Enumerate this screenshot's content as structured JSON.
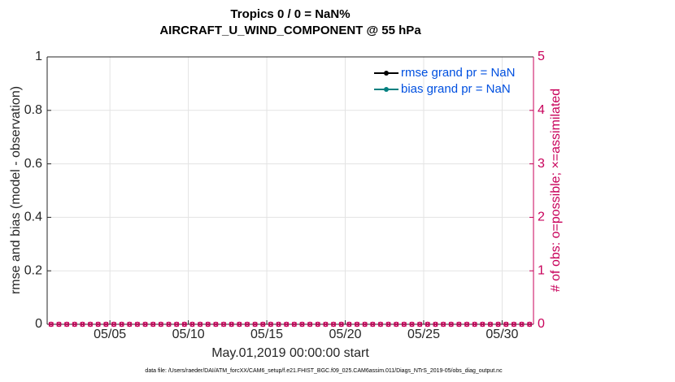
{
  "chart_data": {
    "type": "line",
    "title": "Tropics 0 / 0 = NaN%",
    "subtitle": "AIRCRAFT_U_WIND_COMPONENT @ 55 hPa",
    "ylabel": "rmse and bias (model - observation)",
    "y2label": "# of obs: o=possible; ×=assimilated",
    "xlabel": "May.01,2019 00:00:00 start",
    "footnote": "data file: /Users/raeder/DAI/ATM_forcXX/CAM6_setup/f.e21.FHIST_BGC.f09_025.CAM6assim.011/Diags_NTrS_2019-05/obs_diag_output.nc",
    "xlim": [
      1,
      32
    ],
    "xticks": [
      {
        "value": 5,
        "label": "05/05"
      },
      {
        "value": 10,
        "label": "05/10"
      },
      {
        "value": 15,
        "label": "05/15"
      },
      {
        "value": 20,
        "label": "05/20"
      },
      {
        "value": 25,
        "label": "05/25"
      },
      {
        "value": 30,
        "label": "05/30"
      }
    ],
    "ylim": [
      0,
      1
    ],
    "yticks": [
      0,
      0.2,
      0.4,
      0.6,
      0.8,
      1
    ],
    "y2lim": [
      0,
      5
    ],
    "y2ticks": [
      0,
      1,
      2,
      3,
      4,
      5
    ],
    "y2color": "#c8005a",
    "grid": true,
    "legend": "upper right",
    "x": [
      1.25,
      1.75,
      2.25,
      2.75,
      3.25,
      3.75,
      4.25,
      4.75,
      5.25,
      5.75,
      6.25,
      6.75,
      7.25,
      7.75,
      8.25,
      8.75,
      9.25,
      9.75,
      10.25,
      10.75,
      11.25,
      11.75,
      12.25,
      12.75,
      13.25,
      13.75,
      14.25,
      14.75,
      15.25,
      15.75,
      16.25,
      16.75,
      17.25,
      17.75,
      18.25,
      18.75,
      19.25,
      19.75,
      20.25,
      20.75,
      21.25,
      21.75,
      22.25,
      22.75,
      23.25,
      23.75,
      24.25,
      24.75,
      25.25,
      25.75,
      26.25,
      26.75,
      27.25,
      27.75,
      28.25,
      28.75,
      29.25,
      29.75,
      30.25,
      30.75,
      31.25,
      31.75
    ],
    "series": [
      {
        "name": "rmse grand pr = NaN",
        "color": "#000000",
        "values": [
          null,
          null,
          null,
          null,
          null,
          null,
          null,
          null,
          null,
          null,
          null,
          null,
          null,
          null,
          null,
          null,
          null,
          null,
          null,
          null,
          null,
          null,
          null,
          null,
          null,
          null,
          null,
          null,
          null,
          null,
          null,
          null,
          null,
          null,
          null,
          null,
          null,
          null,
          null,
          null,
          null,
          null,
          null,
          null,
          null,
          null,
          null,
          null,
          null,
          null,
          null,
          null,
          null,
          null,
          null,
          null,
          null,
          null,
          null,
          null,
          null,
          null
        ]
      },
      {
        "name": "bias grand pr = NaN",
        "color": "#008080",
        "values": [
          null,
          null,
          null,
          null,
          null,
          null,
          null,
          null,
          null,
          null,
          null,
          null,
          null,
          null,
          null,
          null,
          null,
          null,
          null,
          null,
          null,
          null,
          null,
          null,
          null,
          null,
          null,
          null,
          null,
          null,
          null,
          null,
          null,
          null,
          null,
          null,
          null,
          null,
          null,
          null,
          null,
          null,
          null,
          null,
          null,
          null,
          null,
          null,
          null,
          null,
          null,
          null,
          null,
          null,
          null,
          null,
          null,
          null,
          null,
          null,
          null,
          null
        ]
      },
      {
        "color": "#c8005a",
        "marker": "o",
        "axis": "y2",
        "values": [
          0,
          0,
          0,
          0,
          0,
          0,
          0,
          0,
          0,
          0,
          0,
          0,
          0,
          0,
          0,
          0,
          0,
          0,
          0,
          0,
          0,
          0,
          0,
          0,
          0,
          0,
          0,
          0,
          0,
          0,
          0,
          0,
          0,
          0,
          0,
          0,
          0,
          0,
          0,
          0,
          0,
          0,
          0,
          0,
          0,
          0,
          0,
          0,
          0,
          0,
          0,
          0,
          0,
          0,
          0,
          0,
          0,
          0,
          0,
          0,
          0,
          0
        ]
      },
      {
        "color": "#c8005a",
        "marker": "x",
        "axis": "y2",
        "values": [
          0,
          0,
          0,
          0,
          0,
          0,
          0,
          0,
          0,
          0,
          0,
          0,
          0,
          0,
          0,
          0,
          0,
          0,
          0,
          0,
          0,
          0,
          0,
          0,
          0,
          0,
          0,
          0,
          0,
          0,
          0,
          0,
          0,
          0,
          0,
          0,
          0,
          0,
          0,
          0,
          0,
          0,
          0,
          0,
          0,
          0,
          0,
          0,
          0,
          0,
          0,
          0,
          0,
          0,
          0,
          0,
          0,
          0,
          0,
          0,
          0,
          0
        ]
      }
    ]
  }
}
